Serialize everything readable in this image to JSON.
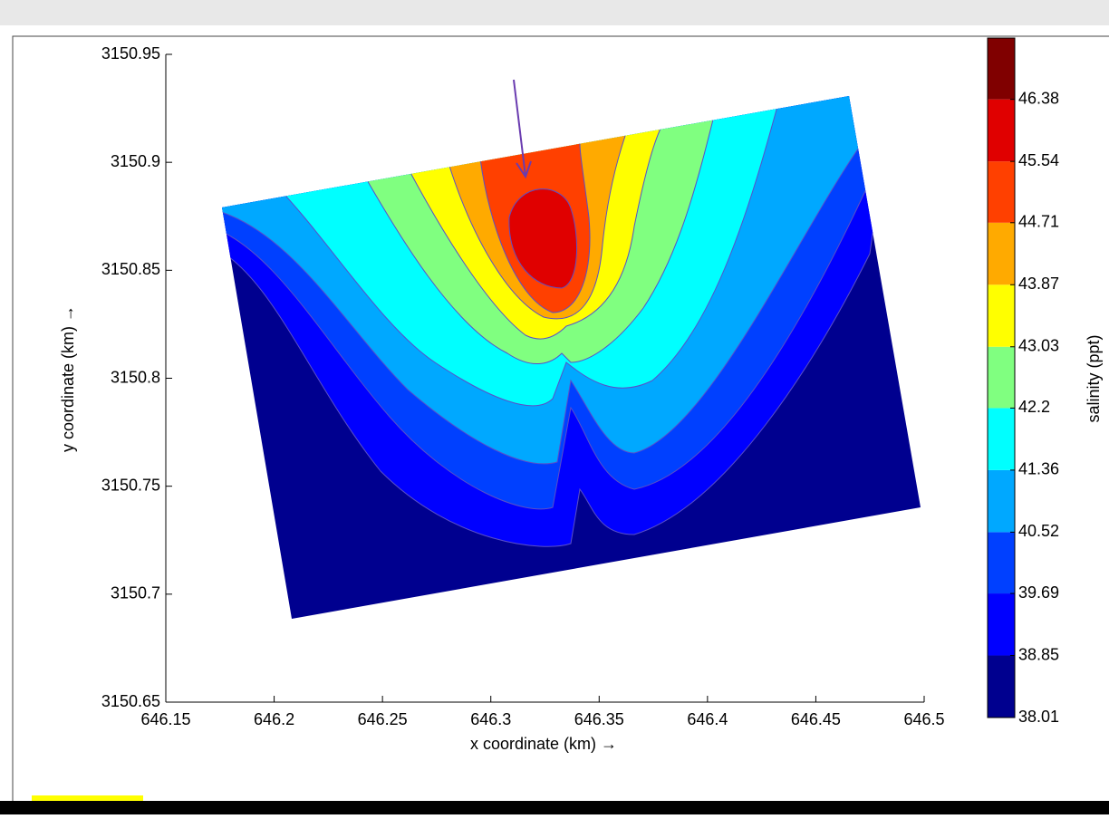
{
  "chart_data": {
    "type": "contour",
    "xlabel": "x coordinate (km) →",
    "ylabel": "y coordinate (km) →",
    "xlim": [
      646.15,
      646.5
    ],
    "xticks": [
      646.15,
      646.2,
      646.25,
      646.3,
      646.35,
      646.4,
      646.45,
      646.5
    ],
    "ylim": [
      3150.65,
      3150.95
    ],
    "yticks": [
      3150.65,
      3150.7,
      3150.75,
      3150.8,
      3150.85,
      3150.9,
      3150.95
    ],
    "colorbar": {
      "label": "salinity (ppt)",
      "clim": [
        38.01,
        47.21
      ],
      "ticks": [
        38.01,
        38.85,
        39.69,
        40.52,
        41.36,
        42.2,
        43.03,
        43.87,
        44.71,
        45.54,
        46.38
      ],
      "colors": [
        "#00008f",
        "#0000ff",
        "#0040ff",
        "#00a8ff",
        "#00ffff",
        "#80ff80",
        "#ffff00",
        "#ffaa00",
        "#ff4000",
        "#e00000",
        "#800000"
      ]
    }
  }
}
